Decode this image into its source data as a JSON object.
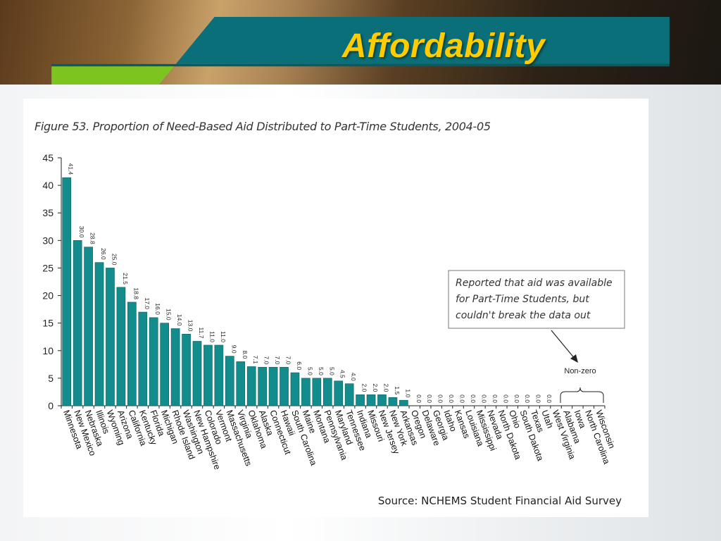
{
  "slide": {
    "title": "Affordability"
  },
  "colors": {
    "bar": "#128c8c",
    "bar_stroke": "#0b5f5f",
    "title": "#ffcc00",
    "band": "#0a6f78",
    "green": "#7cc420"
  },
  "figure": {
    "caption": "Figure 53. Proportion of Need-Based Aid Distributed to Part-Time Students, 2004-05",
    "source": "Source: NCHEMS Student Financial Aid Survey",
    "annotation_lines": [
      "Reported that aid was available",
      "for Part-Time Students, but",
      "couldn't break the data out"
    ],
    "bracket_label": "Non-zero"
  },
  "chart_data": {
    "type": "bar",
    "title": "Figure 53. Proportion of Need-Based Aid Distributed to Part-Time Students, 2004-05",
    "xlabel": "",
    "ylabel": "",
    "ylim": [
      0,
      45
    ],
    "yticks": [
      0,
      5,
      10,
      15,
      20,
      25,
      30,
      35,
      40,
      45
    ],
    "categories": [
      "Minnesota",
      "New Mexico",
      "Nebraska",
      "Illinois",
      "Wyoming",
      "Arizona",
      "California",
      "Kentucky",
      "Florida",
      "Michigan",
      "Rhode Island",
      "Washington",
      "New Hampshire",
      "Colorado",
      "Vermont",
      "Massachusetts",
      "Virginia",
      "Oklahoma",
      "Alaska",
      "Connecticut",
      "Hawaii",
      "South Carolina",
      "Maine",
      "Montana",
      "Pennsylvania",
      "Maryland",
      "Tennessee",
      "Indiana",
      "Missouri",
      "New Jersey",
      "New York",
      "Arkansas",
      "Oregon",
      "Delaware",
      "Georgia",
      "Idaho",
      "Kansas",
      "Louisiana",
      "Mississippi",
      "Nevada",
      "North Dakota",
      "Ohio",
      "South Dakota",
      "Texas",
      "Utah",
      "West Virginia",
      "Alabama",
      "Iowa",
      "North Carolina",
      "Wisconsin"
    ],
    "values": [
      41.4,
      30.0,
      28.8,
      26.0,
      25.0,
      21.5,
      18.8,
      17.0,
      16.0,
      15.0,
      14.0,
      13.0,
      11.7,
      11.0,
      11.0,
      9.0,
      8.0,
      7.1,
      7.0,
      7.0,
      7.0,
      6.0,
      5.0,
      5.0,
      5.0,
      4.5,
      4.0,
      2.0,
      2.0,
      2.0,
      1.5,
      1.0,
      0.0,
      0.0,
      0.0,
      0.0,
      0.0,
      0.0,
      0.0,
      0.0,
      0.0,
      0.0,
      0.0,
      0.0,
      0.0,
      null,
      null,
      null,
      null,
      null
    ],
    "labels": [
      "41.4",
      "30.0",
      "28.8",
      "26.0",
      "25.0",
      "21.5",
      "18.8",
      "17.0",
      "16.0",
      "15.0",
      "14.0",
      "13.0",
      "11.7",
      "11.0",
      "11.0",
      "9.0",
      "8.0",
      "7.1",
      "7.0",
      "7.0",
      "7.0",
      "6.0",
      "5.0",
      "5.0",
      "5.0",
      "4.5",
      "4.0",
      "2.0",
      "2.0",
      "2.0",
      "1.5",
      "1.0",
      "0.0",
      "0.0",
      "0.0",
      "0.0",
      "0.0",
      "0.0",
      "0.0",
      "0.0",
      "0.0",
      "0.0",
      "0.0",
      "0.0",
      "0.0",
      "",
      "",
      "",
      "",
      ""
    ],
    "grid": false,
    "legend": "none"
  }
}
